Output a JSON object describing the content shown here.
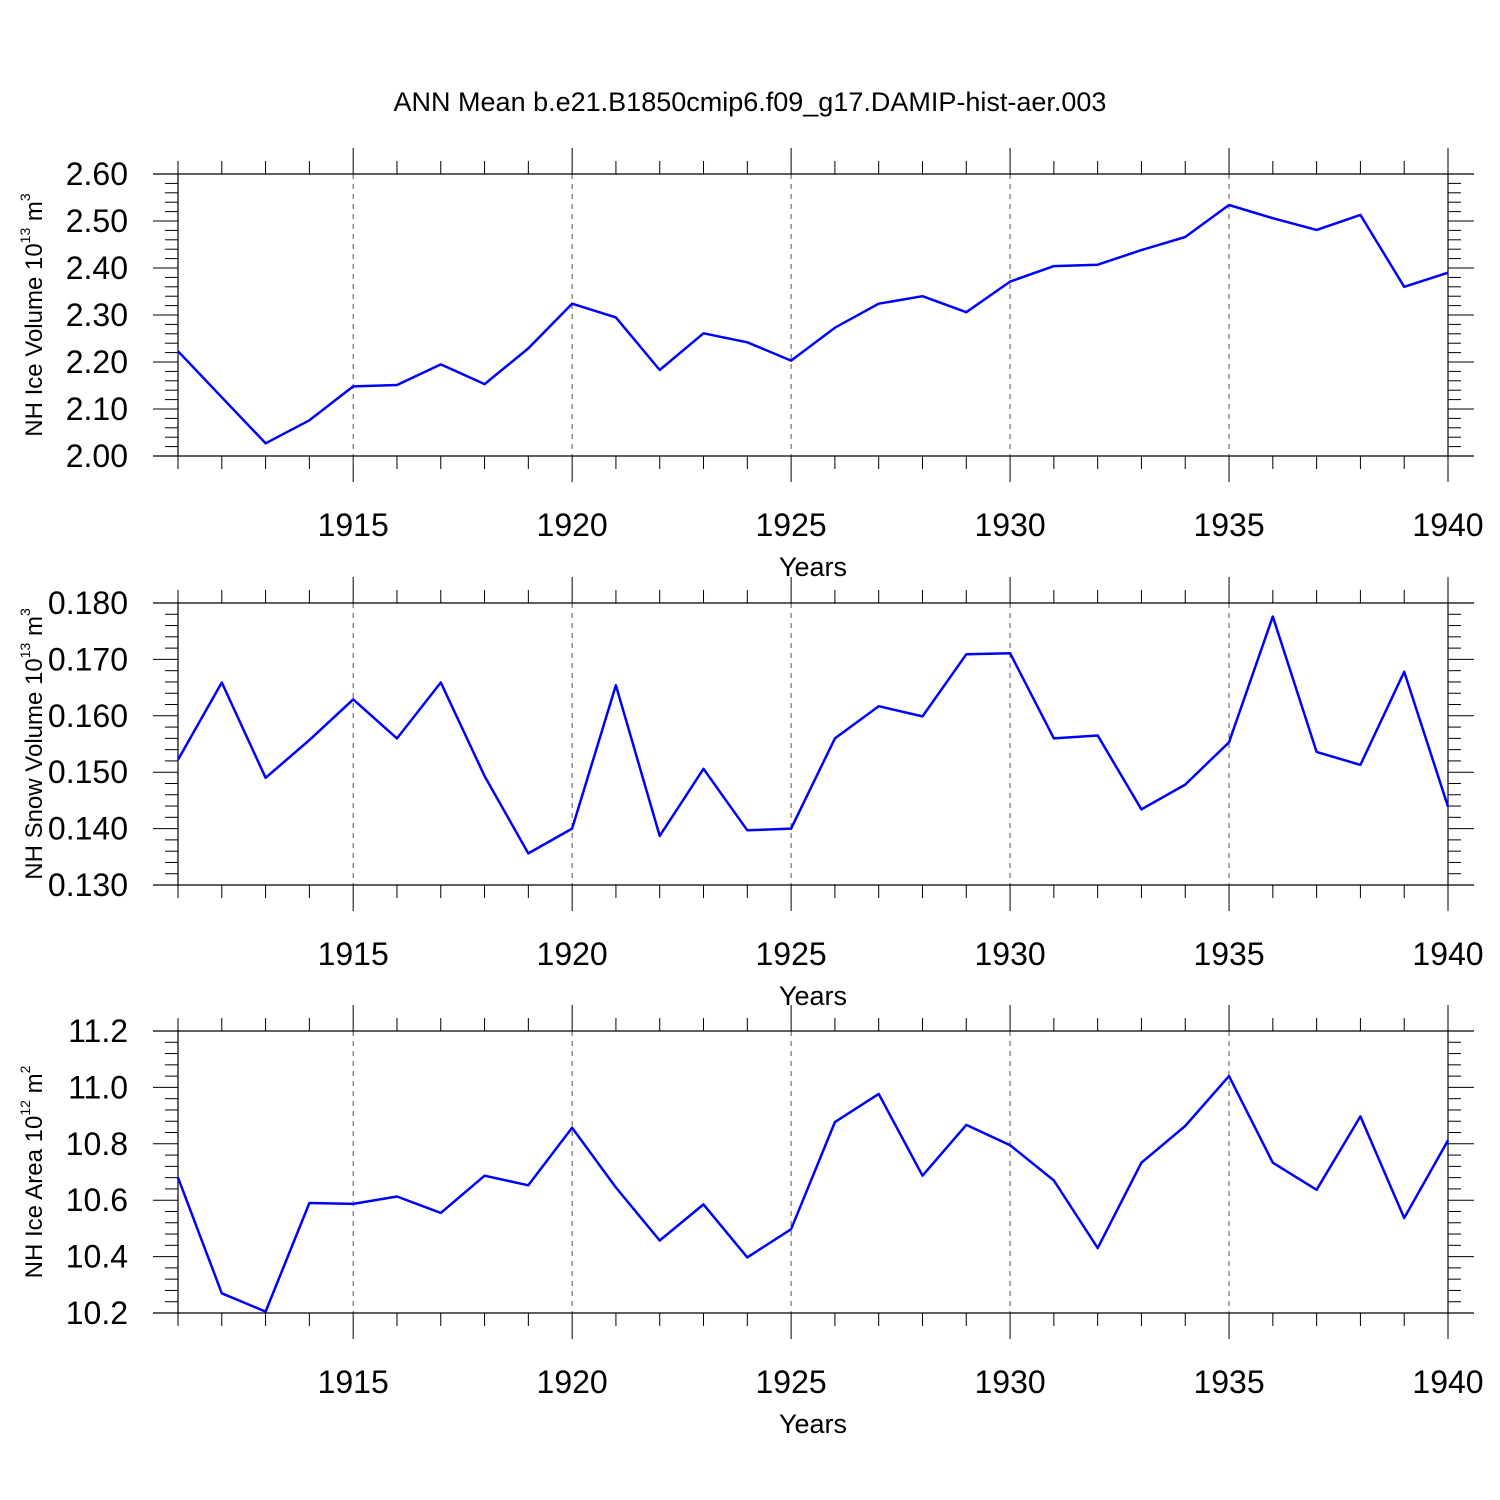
{
  "title": "ANN Mean b.e21.B1850cmip6.f09_g17.DAMIP-hist-aer.003",
  "colors": {
    "line": "#0000ff",
    "axis": "#000000",
    "grid": "#555555"
  },
  "chart_data": [
    {
      "type": "line",
      "ylabel": {
        "prefix": "NH Ice Volume 10",
        "exp": "13",
        "unit": " m",
        "unit_exp": "3"
      },
      "xlabel": "Years",
      "xlim": [
        1911,
        1940
      ],
      "ylim": [
        2.0,
        2.6
      ],
      "xticks": [
        1915,
        1920,
        1925,
        1930,
        1935,
        1940
      ],
      "yticks": [
        "2.00",
        "2.10",
        "2.20",
        "2.30",
        "2.40",
        "2.50",
        "2.60"
      ],
      "grid": "vertical dashed at major x ticks",
      "x": [
        1911,
        1912,
        1913,
        1914,
        1915,
        1916,
        1917,
        1918,
        1919,
        1920,
        1921,
        1922,
        1923,
        1924,
        1925,
        1926,
        1927,
        1928,
        1929,
        1930,
        1931,
        1932,
        1933,
        1934,
        1935,
        1936,
        1937,
        1938,
        1939,
        1940
      ],
      "values": [
        2.223,
        2.125,
        2.027,
        2.076,
        2.148,
        2.151,
        2.195,
        2.153,
        2.229,
        2.324,
        2.295,
        2.183,
        2.261,
        2.242,
        2.203,
        2.273,
        2.324,
        2.34,
        2.306,
        2.371,
        2.404,
        2.407,
        2.438,
        2.466,
        2.534,
        2.506,
        2.481,
        2.513,
        2.36,
        2.39
      ]
    },
    {
      "type": "line",
      "ylabel": {
        "prefix": "NH Snow Volume 10",
        "exp": "13",
        "unit": " m",
        "unit_exp": "3"
      },
      "xlabel": "Years",
      "xlim": [
        1911,
        1940
      ],
      "ylim": [
        0.13,
        0.18
      ],
      "xticks": [
        1915,
        1920,
        1925,
        1930,
        1935,
        1940
      ],
      "yticks": [
        "0.130",
        "0.140",
        "0.150",
        "0.160",
        "0.170",
        "0.180"
      ],
      "grid": "vertical dashed at major x ticks",
      "x": [
        1911,
        1912,
        1913,
        1914,
        1915,
        1916,
        1917,
        1918,
        1919,
        1920,
        1921,
        1922,
        1923,
        1924,
        1925,
        1926,
        1927,
        1928,
        1929,
        1930,
        1931,
        1932,
        1933,
        1934,
        1935,
        1936,
        1937,
        1938,
        1939,
        1940
      ],
      "values": [
        0.1522,
        0.1659,
        0.149,
        0.1557,
        0.1629,
        0.156,
        0.1659,
        0.1493,
        0.1356,
        0.14,
        0.1654,
        0.1387,
        0.1506,
        0.1397,
        0.14,
        0.156,
        0.1617,
        0.1599,
        0.1709,
        0.1711,
        0.156,
        0.1565,
        0.1434,
        0.1478,
        0.1553,
        0.1776,
        0.1536,
        0.1513,
        0.1678,
        0.1439
      ]
    },
    {
      "type": "line",
      "ylabel": {
        "prefix": "NH Ice Area 10",
        "exp": "12",
        "unit": " m",
        "unit_exp": "2"
      },
      "xlabel": "Years",
      "xlim": [
        1911,
        1940
      ],
      "ylim": [
        10.2,
        11.2
      ],
      "xticks": [
        1915,
        1920,
        1925,
        1930,
        1935,
        1940
      ],
      "yticks": [
        "10.2",
        "10.4",
        "10.6",
        "10.8",
        "11.0",
        "11.2"
      ],
      "grid": "vertical dashed at major x ticks",
      "x": [
        1911,
        1912,
        1913,
        1914,
        1915,
        1916,
        1917,
        1918,
        1919,
        1920,
        1921,
        1922,
        1923,
        1924,
        1925,
        1926,
        1927,
        1928,
        1929,
        1930,
        1931,
        1932,
        1933,
        1934,
        1935,
        1936,
        1937,
        1938,
        1939,
        1940
      ],
      "values": [
        10.68,
        10.27,
        10.205,
        10.59,
        10.587,
        10.613,
        10.555,
        10.687,
        10.653,
        10.857,
        10.645,
        10.457,
        10.585,
        10.397,
        10.497,
        10.877,
        10.977,
        10.687,
        10.867,
        10.795,
        10.67,
        10.43,
        10.733,
        10.863,
        11.04,
        10.733,
        10.637,
        10.897,
        10.537,
        10.812
      ]
    }
  ]
}
